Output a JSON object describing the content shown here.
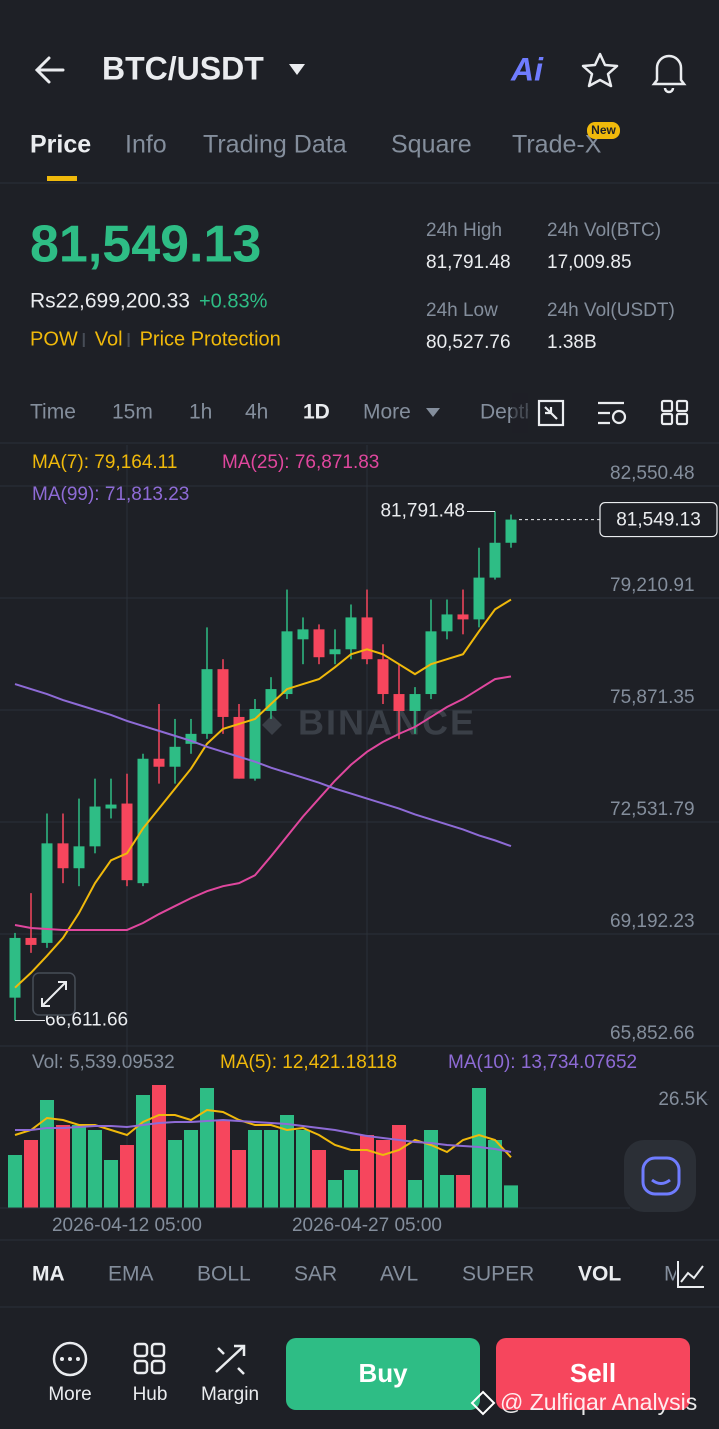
{
  "header": {
    "title": "BTC/USDT",
    "ai": "Ai"
  },
  "tabs": {
    "items": [
      "Price",
      "Info",
      "Trading Data",
      "Square",
      "Trade-X"
    ],
    "badge": "New"
  },
  "ticker": {
    "price": "81,549.13",
    "local_price": "Rs22,699,200.33",
    "change": "+0.83%",
    "tags": [
      "POW",
      "Vol",
      "Price Protection"
    ]
  },
  "stats": [
    {
      "label": "24h High",
      "value": "81,791.48"
    },
    {
      "label": "24h Vol(BTC)",
      "value": "17,009.85"
    },
    {
      "label": "24h Low",
      "value": "80,527.76"
    },
    {
      "label": "24h Vol(USDT)",
      "value": "1.38B"
    }
  ],
  "intervals": [
    "Time",
    "15m",
    "1h",
    "4h",
    "1D",
    "More",
    "Depth"
  ],
  "chart_data": {
    "type": "candlestick",
    "categories": [
      null,
      null,
      null,
      null,
      null,
      null,
      null,
      "2026-04-12 05:00",
      null,
      null,
      null,
      null,
      null,
      null,
      null,
      null,
      null,
      null,
      null,
      null,
      null,
      null,
      "2026-04-27 05:00",
      null,
      null,
      null,
      null,
      null,
      null,
      null,
      null,
      null
    ],
    "open": [
      67294,
      69075,
      68927,
      71895,
      71153,
      71806,
      72934,
      73082,
      70708,
      74418,
      74180,
      74863,
      75160,
      77089,
      75664,
      73824,
      75842,
      76347,
      77979,
      78276,
      77534,
      77682,
      78632,
      77386,
      76347,
      75842,
      76347,
      78217,
      78721,
      78573,
      79819,
      80858
    ],
    "high": [
      69224,
      70411,
      72785,
      72785,
      73230,
      73824,
      73824,
      73972,
      74566,
      76050,
      75605,
      75605,
      78335,
      77386,
      76050,
      76198,
      76851,
      79463,
      78632,
      78424,
      78276,
      79018,
      79463,
      77831,
      77237,
      76554,
      79166,
      79166,
      79463,
      80710,
      81791.48,
      81700
    ],
    "low": [
      66611.66,
      68630,
      68778,
      70708,
      70618,
      71598,
      72637,
      70618,
      70618,
      73676,
      73676,
      74566,
      75011,
      75160,
      73824,
      73765,
      75605,
      76198,
      77237,
      77237,
      77237,
      77386,
      77237,
      76050,
      75011,
      75160,
      76198,
      77979,
      78128,
      78335,
      79760,
      80710
    ],
    "close": [
      69075,
      68867,
      71895,
      71153,
      71806,
      72993,
      73052,
      70797,
      74418,
      74180,
      74774,
      75160,
      77089,
      75664,
      73824,
      75902,
      76495,
      78217,
      78276,
      77445,
      77682,
      78632,
      77386,
      76347,
      75842,
      76347,
      78217,
      78721,
      78573,
      79819,
      80858,
      81549.13
    ],
    "up_color": "#2ebd85",
    "down_color": "#f6465d",
    "ylim": [
      65852.66,
      82550.48
    ],
    "yticks": [
      {
        "value": 82550.48,
        "label": "82,550.48"
      },
      {
        "value": 79210.91,
        "label": "79,210.91"
      },
      {
        "value": 75871.35,
        "label": "75,871.35"
      },
      {
        "value": 72531.79,
        "label": "72,531.79"
      },
      {
        "value": 69192.23,
        "label": "69,192.23"
      },
      {
        "value": 65852.66,
        "label": "65,852.66"
      }
    ],
    "grid": true,
    "series": [
      {
        "name": "MA(7): 79,164.11",
        "color": "#f0b90b",
        "values": [
          67591,
          68036,
          68541,
          69075,
          69817,
          70708,
          71390,
          71598,
          72340,
          72934,
          73527,
          74121,
          74863,
          75308,
          75456,
          75605,
          76050,
          76495,
          76644,
          76792,
          77148,
          77534,
          77682,
          77534,
          77237,
          76940,
          77237,
          77386,
          77534,
          78217,
          78870,
          79164.11
        ]
      },
      {
        "name": "MA(25): 76,871.83",
        "color": "#e0479e",
        "values": [
          69461,
          69372,
          69342,
          69313,
          69313,
          69313,
          69313,
          69313,
          69520,
          69787,
          70025,
          70262,
          70470,
          70618,
          70708,
          70945,
          71509,
          72102,
          72696,
          73230,
          73765,
          74239,
          74625,
          74922,
          75160,
          75367,
          75664,
          75961,
          76198,
          76495,
          76792,
          76871.83
        ]
      },
      {
        "name": "MA(99): 71,813.23",
        "color": "#8e6bd6",
        "values": [
          76644,
          76495,
          76347,
          76169,
          76020,
          75872,
          75724,
          75546,
          75397,
          75249,
          75100,
          74952,
          74774,
          74625,
          74477,
          74329,
          74151,
          74002,
          73854,
          73705,
          73527,
          73379,
          73230,
          73082,
          72934,
          72756,
          72607,
          72459,
          72310,
          72132,
          71984,
          71813.23
        ]
      }
    ],
    "annotations": [
      {
        "value": 81791.48,
        "label": "81,791.48"
      },
      {
        "value": 66611.66,
        "label": "66,611.66"
      },
      {
        "value": 81549.13,
        "label": "81,549.13"
      }
    ],
    "watermark": "BINANCE",
    "volume": {
      "type": "bar",
      "name": "Vol: 5,539.09532",
      "values": [
        12985,
        16660,
        26460,
        20335,
        20335,
        19110,
        11760,
        15435,
        27685,
        30135,
        16660,
        19110,
        29400,
        21560,
        14210,
        19110,
        19110,
        22785,
        19110,
        14210,
        6860,
        9310,
        17885,
        16660,
        20335,
        6860,
        19110,
        8085,
        8085,
        29400,
        16660,
        5539.09532
      ],
      "ylim": [
        0,
        31360
      ],
      "yticks": [
        {
          "value": 26500,
          "label": "26.5K"
        }
      ],
      "series": [
        {
          "name": "MA(5): 12,421.18118",
          "color": "#f0b90b",
          "values": [
            17885,
            19110,
            22050,
            21560,
            20335,
            20335,
            19110,
            17885,
            21070,
            22785,
            22785,
            21560,
            24010,
            23520,
            21560,
            20335,
            20335,
            19110,
            19600,
            17885,
            15435,
            14210,
            14210,
            12985,
            14210,
            16660,
            15435,
            13720,
            16660,
            17885,
            16660,
            12421.18118
          ]
        },
        {
          "name": "MA(10): 13,734.07652",
          "color": "#8e6bd6",
          "values": [
            19110,
            19110,
            19600,
            19600,
            19845,
            20090,
            20090,
            19845,
            20335,
            20825,
            21070,
            21070,
            21315,
            21560,
            21315,
            21070,
            20825,
            20580,
            20090,
            19600,
            19110,
            18375,
            17640,
            17150,
            16660,
            16170,
            15925,
            15435,
            15190,
            14945,
            14455,
            13734.07652
          ]
        }
      ]
    }
  },
  "indicators": [
    "MA",
    "EMA",
    "BOLL",
    "SAR",
    "AVL",
    "SUPER",
    "VOL",
    "MACD"
  ],
  "actions": [
    "More",
    "Hub",
    "Margin"
  ],
  "buttons": {
    "buy": "Buy",
    "sell": "Sell"
  },
  "watermark": "@ Zulfiqar Analysis"
}
